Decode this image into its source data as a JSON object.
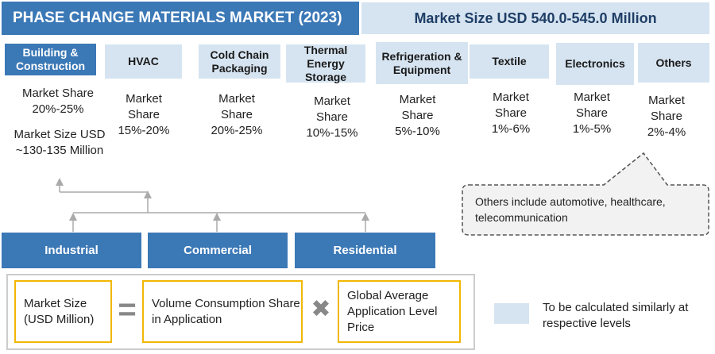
{
  "header": {
    "title": "PHASE CHANGE MATERIALS MARKET (2023)",
    "market_size": "Market Size USD 540.0-545.0 Million"
  },
  "applications": [
    {
      "name": "Building & Construction",
      "share": "Market Share 20%-25%",
      "size": "Market Size USD ~130-135 Million"
    },
    {
      "name": "HVAC",
      "share": "Market Share 15%-20%"
    },
    {
      "name": "Cold Chain Packaging",
      "share": "Market Share 20%-25%"
    },
    {
      "name": "Thermal Energy Storage",
      "share": "Market Share 10%-15%"
    },
    {
      "name": "Refrigeration & Equipment",
      "share": "Market Share 5%-10%"
    },
    {
      "name": "Textile",
      "share": "Market Share 1%-6%"
    },
    {
      "name": "Electronics",
      "share": "Market Share 1%-5%"
    },
    {
      "name": "Others",
      "share": "Market Share 2%-4%"
    }
  ],
  "callout": "Others include automotive, healthcare, telecommunication",
  "segments": [
    "Industrial",
    "Commercial",
    "Residential"
  ],
  "formula": {
    "left": "Market Size (USD Million)",
    "equals": "=",
    "middle": "Volume Consumption Share in Application",
    "times": "✖",
    "right": "Global Average Application Level Price"
  },
  "legend": "To be calculated similarly at respective levels"
}
